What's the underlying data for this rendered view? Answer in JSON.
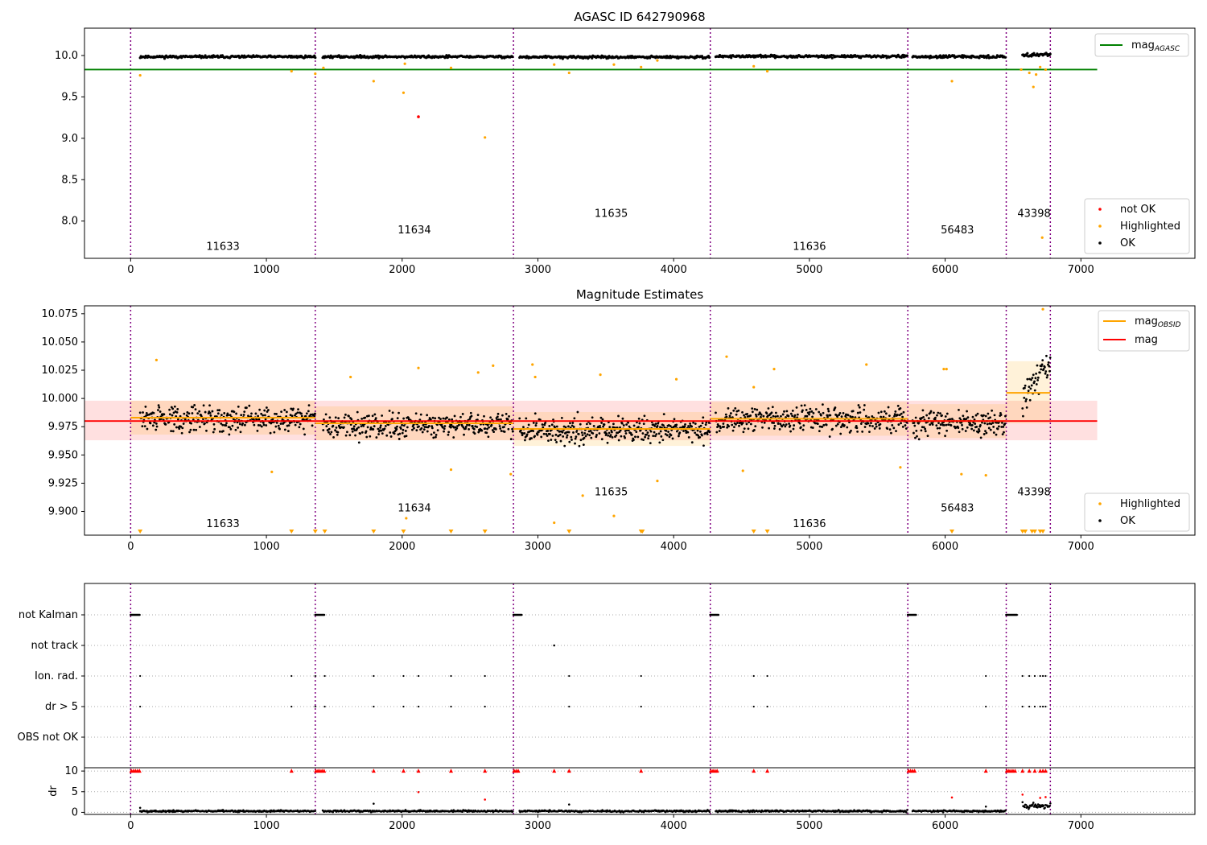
{
  "chart_data": [
    {
      "type": "scatter",
      "title": "AGASC ID 642790968",
      "xlim": [
        -340,
        7840
      ],
      "ylim": [
        7.55,
        10.33
      ],
      "xticks": [
        "0",
        "1000",
        "2000",
        "3000",
        "4000",
        "5000",
        "6000",
        "7000"
      ],
      "yticks": [
        "8.0",
        "8.5",
        "9.0",
        "9.5",
        "10.0"
      ],
      "reference_line": {
        "name": "mag",
        "sub": "AGASC",
        "value": 9.83,
        "x_end": 7120,
        "color": "#008000"
      },
      "obsid_boundaries": [
        0,
        1360,
        2820,
        4270,
        5725,
        6450,
        6775
      ],
      "obsid_labels": [
        {
          "text": "11633",
          "x": 680,
          "y": 7.69
        },
        {
          "text": "11634",
          "x": 2090,
          "y": 7.89
        },
        {
          "text": "11635",
          "x": 3540,
          "y": 8.09
        },
        {
          "text": "11636",
          "x": 5000,
          "y": 7.69
        },
        {
          "text": "56483",
          "x": 6090,
          "y": 7.89
        },
        {
          "text": "43398",
          "x": 6655,
          "y": 8.09
        }
      ],
      "ok_segments": [
        {
          "x0": 70,
          "x1": 1360,
          "mean": 9.985,
          "spread": 0.02
        },
        {
          "x0": 1415,
          "x1": 2815,
          "mean": 9.985,
          "spread": 0.02
        },
        {
          "x0": 2865,
          "x1": 4265,
          "mean": 9.98,
          "spread": 0.02
        },
        {
          "x0": 4310,
          "x1": 5720,
          "mean": 9.99,
          "spread": 0.02
        },
        {
          "x0": 5760,
          "x1": 6445,
          "mean": 9.985,
          "spread": 0.02
        },
        {
          "x0": 6570,
          "x1": 6775,
          "mean": 10.01,
          "spread": 0.03
        }
      ],
      "highlighted": [
        [
          70,
          9.76
        ],
        [
          1185,
          9.81
        ],
        [
          1360,
          9.78
        ],
        [
          1420,
          9.85
        ],
        [
          1790,
          9.69
        ],
        [
          2010,
          9.55
        ],
        [
          2020,
          9.9
        ],
        [
          2360,
          9.85
        ],
        [
          2610,
          9.01
        ],
        [
          3120,
          9.89
        ],
        [
          3230,
          9.79
        ],
        [
          3560,
          9.89
        ],
        [
          3760,
          9.86
        ],
        [
          3880,
          9.94
        ],
        [
          4590,
          9.87
        ],
        [
          4690,
          9.81
        ],
        [
          6050,
          9.69
        ],
        [
          6560,
          9.83
        ],
        [
          6620,
          9.79
        ],
        [
          6650,
          9.62
        ],
        [
          6670,
          9.77
        ],
        [
          6700,
          9.86
        ],
        [
          6715,
          7.8
        ],
        [
          6740,
          9.83
        ]
      ],
      "not_ok": [
        [
          2120,
          9.26
        ]
      ],
      "legend": [
        {
          "label": "not OK",
          "color": "#ff0000"
        },
        {
          "label": "Highlighted",
          "color": "#ffa500"
        },
        {
          "label": "OK",
          "color": "#000000"
        }
      ]
    },
    {
      "type": "scatter",
      "title": "Magnitude Estimates",
      "xlim": [
        -340,
        7840
      ],
      "ylim": [
        9.879,
        10.082
      ],
      "xticks": [
        "0",
        "1000",
        "2000",
        "3000",
        "4000",
        "5000",
        "6000",
        "7000"
      ],
      "yticks": [
        "9.900",
        "9.925",
        "9.950",
        "9.975",
        "10.000",
        "10.025",
        "10.050",
        "10.075"
      ],
      "mag_line": {
        "name": "mag",
        "value": 9.98,
        "band": [
          9.963,
          9.998
        ],
        "x_end": 7120,
        "color": "#ff0000"
      },
      "obsid_mags": [
        {
          "name": "mag",
          "sub": "OBSID",
          "x0": 0,
          "x1": 1360,
          "value": 9.983,
          "band": [
            9.968,
            9.998
          ]
        },
        {
          "x0": 1360,
          "x1": 2820,
          "value": 9.978,
          "band": [
            9.963,
            9.993
          ]
        },
        {
          "x0": 2820,
          "x1": 4270,
          "value": 9.973,
          "band": [
            9.958,
            9.988
          ]
        },
        {
          "x0": 4270,
          "x1": 5725,
          "value": 9.982,
          "band": [
            9.967,
            9.997
          ]
        },
        {
          "x0": 5725,
          "x1": 6450,
          "value": 9.98,
          "band": [
            9.965,
            9.995
          ]
        },
        {
          "x0": 6450,
          "x1": 6775,
          "value": 10.005,
          "band": [
            9.978,
            10.033
          ]
        }
      ],
      "obsid_boundaries": [
        0,
        1360,
        2820,
        4270,
        5725,
        6450,
        6775
      ],
      "obsid_labels": [
        {
          "text": "11633",
          "x": 680,
          "y": 9.889
        },
        {
          "text": "11634",
          "x": 2090,
          "y": 9.903
        },
        {
          "text": "11635",
          "x": 3540,
          "y": 9.917
        },
        {
          "text": "11636",
          "x": 5000,
          "y": 9.889
        },
        {
          "text": "56483",
          "x": 6090,
          "y": 9.903
        },
        {
          "text": "43398",
          "x": 6655,
          "y": 9.917
        }
      ],
      "ok_segments": [
        {
          "x0": 70,
          "x1": 1360,
          "mean": 9.982,
          "spread": 0.014
        },
        {
          "x0": 1415,
          "x1": 2815,
          "mean": 9.976,
          "spread": 0.014
        },
        {
          "x0": 2865,
          "x1": 4265,
          "mean": 9.972,
          "spread": 0.014
        },
        {
          "x0": 4310,
          "x1": 5720,
          "mean": 9.981,
          "spread": 0.014
        },
        {
          "x0": 5760,
          "x1": 6445,
          "mean": 9.978,
          "spread": 0.014
        },
        {
          "x0": 6570,
          "x1": 6775,
          "mean": 10.012,
          "spread": 0.02
        }
      ],
      "highlighted": [
        [
          190,
          10.034
        ],
        [
          1040,
          9.935
        ],
        [
          1620,
          10.019
        ],
        [
          2120,
          10.027
        ],
        [
          2030,
          9.894
        ],
        [
          2360,
          9.937
        ],
        [
          2560,
          10.023
        ],
        [
          2670,
          10.029
        ],
        [
          2800,
          9.933
        ],
        [
          2960,
          10.03
        ],
        [
          2980,
          10.019
        ],
        [
          3120,
          9.89
        ],
        [
          3330,
          9.914
        ],
        [
          3460,
          10.021
        ],
        [
          3560,
          9.896
        ],
        [
          3880,
          9.927
        ],
        [
          4020,
          10.017
        ],
        [
          4390,
          10.037
        ],
        [
          4510,
          9.936
        ],
        [
          4590,
          10.01
        ],
        [
          4740,
          10.026
        ],
        [
          5420,
          10.03
        ],
        [
          5670,
          9.939
        ],
        [
          5990,
          10.026
        ],
        [
          6010,
          10.026
        ],
        [
          6120,
          9.933
        ],
        [
          6300,
          9.932
        ],
        [
          6720,
          10.079
        ]
      ],
      "offscale_low": [
        70,
        1185,
        1360,
        1430,
        1790,
        2010,
        2360,
        2610,
        3230,
        3760,
        3770,
        4590,
        4690,
        6050,
        6570,
        6590,
        6640,
        6660,
        6700,
        6720
      ],
      "legend": [
        {
          "label": "Highlighted",
          "color": "#ffa500"
        },
        {
          "label": "OK",
          "color": "#000000"
        }
      ]
    },
    {
      "type": "scatter",
      "title": "",
      "xlim": [
        -340,
        7840
      ],
      "xticks": [
        "0",
        "1000",
        "2000",
        "3000",
        "4000",
        "5000",
        "6000",
        "7000"
      ],
      "flag_rows": [
        "not Kalman",
        "not track",
        "Ion. rad.",
        "dr > 5",
        "OBS not OK"
      ],
      "not_kalman": [
        [
          0,
          70
        ],
        [
          1360,
          1430
        ],
        [
          2820,
          2880
        ],
        [
          4270,
          4330
        ],
        [
          5725,
          5785
        ],
        [
          6450,
          6530
        ]
      ],
      "not_track": [
        3120
      ],
      "ion_rad": [
        70,
        1185,
        1360,
        1430,
        1790,
        2010,
        2120,
        2360,
        2610,
        3230,
        3760,
        4590,
        4690,
        6300,
        6570,
        6620,
        6660,
        6700,
        6720,
        6740
      ],
      "dr_gt_5": [
        70,
        1185,
        1360,
        1430,
        1790,
        2010,
        2120,
        2360,
        2610,
        3230,
        3760,
        4590,
        4690,
        6300,
        6570,
        6620,
        6660,
        6700,
        6720,
        6740
      ],
      "obs_not_ok": [],
      "dr": {
        "ylabel": "dr",
        "ylim": [
          -0.5,
          10.8
        ],
        "yticks": [
          "0",
          "5",
          "10"
        ],
        "capped_red": [
          5,
          20,
          35,
          50,
          65,
          1185,
          1365,
          1380,
          1395,
          1410,
          1425,
          1790,
          2010,
          2120,
          2360,
          2610,
          2825,
          2840,
          2855,
          3120,
          3230,
          3760,
          4275,
          4290,
          4305,
          4320,
          4590,
          4690,
          5730,
          5745,
          5760,
          5775,
          6300,
          6455,
          6470,
          6485,
          6500,
          6515,
          6570,
          6620,
          6660,
          6700,
          6720,
          6740
        ],
        "red_points": [
          [
            2120,
            4.9
          ],
          [
            2610,
            3.1
          ],
          [
            6050,
            3.6
          ],
          [
            6570,
            4.3
          ],
          [
            6700,
            3.5
          ],
          [
            6740,
            3.7
          ]
        ],
        "black_outliers": [
          [
            70,
            1.1
          ],
          [
            1790,
            2.1
          ],
          [
            3230,
            1.9
          ],
          [
            6300,
            1.4
          ]
        ],
        "ok_segments": [
          {
            "x0": 70,
            "x1": 1360,
            "mean": 0.3
          },
          {
            "x0": 1415,
            "x1": 2815,
            "mean": 0.3
          },
          {
            "x0": 2865,
            "x1": 4265,
            "mean": 0.3
          },
          {
            "x0": 4310,
            "x1": 5720,
            "mean": 0.3
          },
          {
            "x0": 5760,
            "x1": 6445,
            "mean": 0.3
          },
          {
            "x0": 6570,
            "x1": 6775,
            "mean": 1.6
          }
        ]
      }
    }
  ]
}
